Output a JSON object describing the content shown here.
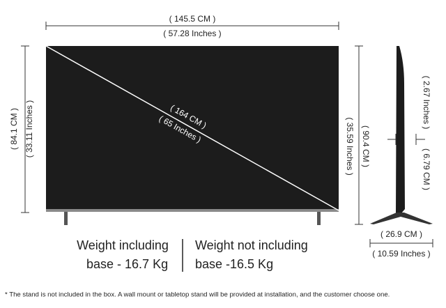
{
  "width_cm": "( 145.5 CM )",
  "width_in": "( 57.28 Inches )",
  "height_cm": "( 84.1 CM )",
  "height_in": "( 33.11 Inches )",
  "diagonal_cm": "( 164 CM )",
  "diagonal_in": "( 65 Inches )",
  "height_stand_in": "( 35.59 Inches )",
  "height_stand_cm": "( 90.4 CM )",
  "depth_in": "( 2.67 Inches )",
  "depth_cm": "( 6.79 CM )",
  "stand_depth_cm": "( 26.9 CM )",
  "stand_depth_in": "( 10.59 Inches )",
  "weight_with_base": [
    "Weight including",
    "base - 16.7 Kg"
  ],
  "weight_without_base": [
    "Weight not including",
    "base -16.5 Kg"
  ],
  "footnote": "* The stand is not included in the box. A wall mount or tabletop stand will be provided at installation, and the customer choose one."
}
